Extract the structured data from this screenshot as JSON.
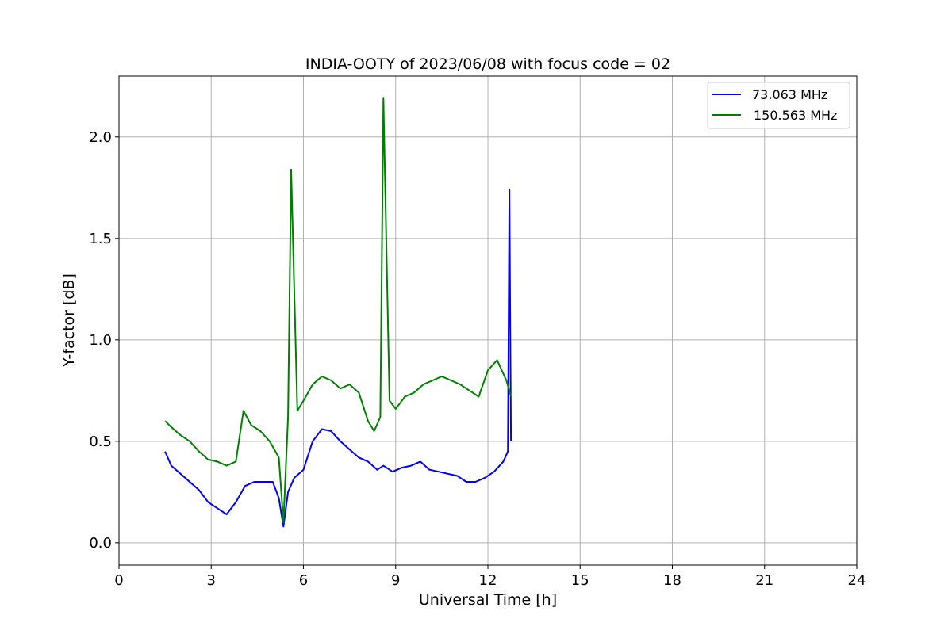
{
  "chart_data": {
    "type": "line",
    "title": "INDIA-OOTY of 2023/06/08 with focus code = 02",
    "xlabel": "Universal Time [h]",
    "ylabel": "Y-factor [dB]",
    "xlim": [
      0,
      24
    ],
    "ylim": [
      -0.11,
      2.3
    ],
    "xticks": [
      0,
      3,
      6,
      9,
      12,
      15,
      18,
      21,
      24
    ],
    "yticks": [
      0.0,
      0.5,
      1.0,
      1.5,
      2.0
    ],
    "xtick_labels": [
      "0",
      "3",
      "6",
      "9",
      "12",
      "15",
      "18",
      "21",
      "24"
    ],
    "ytick_labels": [
      "0.0",
      "0.5",
      "1.0",
      "1.5",
      "2.0"
    ],
    "grid": true,
    "legend_position": "top-right",
    "series": [
      {
        "name": "73.063 MHz",
        "color": "#0000ff",
        "x": [
          1.5,
          1.7,
          2.0,
          2.3,
          2.6,
          2.9,
          3.2,
          3.5,
          3.8,
          4.1,
          4.4,
          4.7,
          5.0,
          5.2,
          5.35,
          5.5,
          5.7,
          6.0,
          6.3,
          6.6,
          6.9,
          7.2,
          7.5,
          7.8,
          8.1,
          8.4,
          8.6,
          8.9,
          9.2,
          9.5,
          9.8,
          10.1,
          10.4,
          10.7,
          11.0,
          11.3,
          11.6,
          11.9,
          12.2,
          12.5,
          12.65,
          12.7,
          12.75
        ],
        "y": [
          0.45,
          0.38,
          0.34,
          0.3,
          0.26,
          0.2,
          0.17,
          0.14,
          0.2,
          0.28,
          0.3,
          0.3,
          0.3,
          0.22,
          0.08,
          0.25,
          0.32,
          0.36,
          0.5,
          0.56,
          0.55,
          0.5,
          0.46,
          0.42,
          0.4,
          0.36,
          0.38,
          0.35,
          0.37,
          0.38,
          0.4,
          0.36,
          0.35,
          0.34,
          0.33,
          0.3,
          0.3,
          0.32,
          0.35,
          0.4,
          0.45,
          1.74,
          0.5
        ]
      },
      {
        "name": "150.563 MHz",
        "color": "#008000",
        "x": [
          1.5,
          1.7,
          2.0,
          2.3,
          2.6,
          2.9,
          3.2,
          3.5,
          3.8,
          4.05,
          4.3,
          4.6,
          4.9,
          5.2,
          5.35,
          5.5,
          5.6,
          5.8,
          6.0,
          6.3,
          6.6,
          6.9,
          7.2,
          7.5,
          7.8,
          8.1,
          8.3,
          8.5,
          8.6,
          8.8,
          9.0,
          9.3,
          9.6,
          9.9,
          10.2,
          10.5,
          10.8,
          11.1,
          11.4,
          11.7,
          12.0,
          12.3,
          12.6,
          12.75
        ],
        "y": [
          0.6,
          0.57,
          0.53,
          0.5,
          0.45,
          0.41,
          0.4,
          0.38,
          0.4,
          0.65,
          0.58,
          0.55,
          0.5,
          0.42,
          0.1,
          0.62,
          1.84,
          0.65,
          0.7,
          0.78,
          0.82,
          0.8,
          0.76,
          0.78,
          0.74,
          0.6,
          0.55,
          0.62,
          2.19,
          0.7,
          0.66,
          0.72,
          0.74,
          0.78,
          0.8,
          0.82,
          0.8,
          0.78,
          0.75,
          0.72,
          0.85,
          0.9,
          0.8,
          0.72
        ]
      }
    ]
  }
}
